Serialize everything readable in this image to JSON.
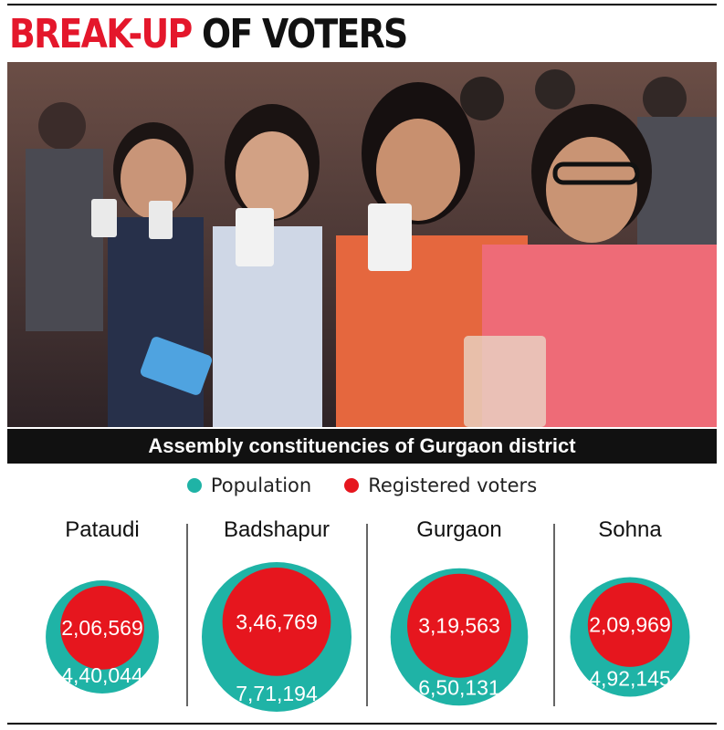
{
  "header": {
    "title_part1": "BREAK-UP",
    "title_part2": " OF VOTERS"
  },
  "photo": {
    "description_icon": "photo-icon"
  },
  "subtitle": "Assembly constituencies of Gurgaon district",
  "colors": {
    "population": "#1fb3a6",
    "registered": "#e6161e",
    "accent_red": "#e4172b"
  },
  "chart_data": {
    "type": "bubble",
    "title": "Assembly constituencies of Gurgaon district",
    "legend": [
      {
        "name": "Population",
        "color": "#1fb3a6"
      },
      {
        "name": "Registered voters",
        "color": "#e6161e"
      }
    ],
    "legend_position": "top-center",
    "categories": [
      "Pataudi",
      "Badshapur",
      "Gurgaon",
      "Sohna"
    ],
    "series": [
      {
        "name": "Population",
        "values": [
          440044,
          771194,
          650131,
          492145
        ],
        "labels": [
          "4,40,044",
          "7,71,194",
          "6,50,131",
          "4,92,145"
        ]
      },
      {
        "name": "Registered voters",
        "values": [
          206569,
          346769,
          319563,
          209969
        ],
        "labels": [
          "2,06,569",
          "3,46,769",
          "3,19,563",
          "2,09,969"
        ]
      }
    ]
  }
}
